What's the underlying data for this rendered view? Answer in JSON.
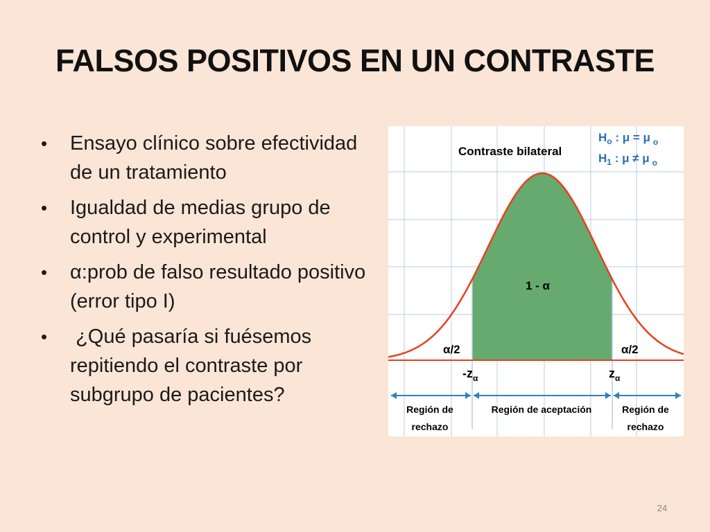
{
  "slide": {
    "title": "FALSOS POSITIVOS EN UN CONTRASTE",
    "bullets": [
      "Ensayo clínico sobre efectividad de un tratamiento",
      "Igualdad de medias grupo de control y experimental",
      "α:prob de falso resultado positivo (error tipo I)",
      " ¿Qué pasaría si fuésemos repitiendo el contraste por subgrupo de pacientes?"
    ],
    "bullet_symbol": "•",
    "page_number": "24"
  },
  "figure": {
    "title": "Contraste bilateral",
    "h0": {
      "letter": "H",
      "sub": "o",
      "expr": " : μ = μ",
      "tail_sub": "o"
    },
    "h1": {
      "letter": "H",
      "sub": "1",
      "expr": " : μ ≠ μ",
      "tail_sub": "o"
    },
    "center_label": "1 - α",
    "left_tail_label": "α/2",
    "right_tail_label": "α/2",
    "left_crit": {
      "main": "-z",
      "sub": "α"
    },
    "right_crit": {
      "main": "z",
      "sub": "α"
    },
    "regions": {
      "left": [
        "Región de",
        "rechazo"
      ],
      "center": "Región de aceptación",
      "right": [
        "Región de",
        "rechazo"
      ]
    },
    "colors": {
      "curve": "#e8401c",
      "fill": "#66aa70",
      "grid": "#b9cde6",
      "arrows": "#2f7fc2",
      "hypothesis": "#2a6fb8",
      "text": "#222222"
    }
  }
}
